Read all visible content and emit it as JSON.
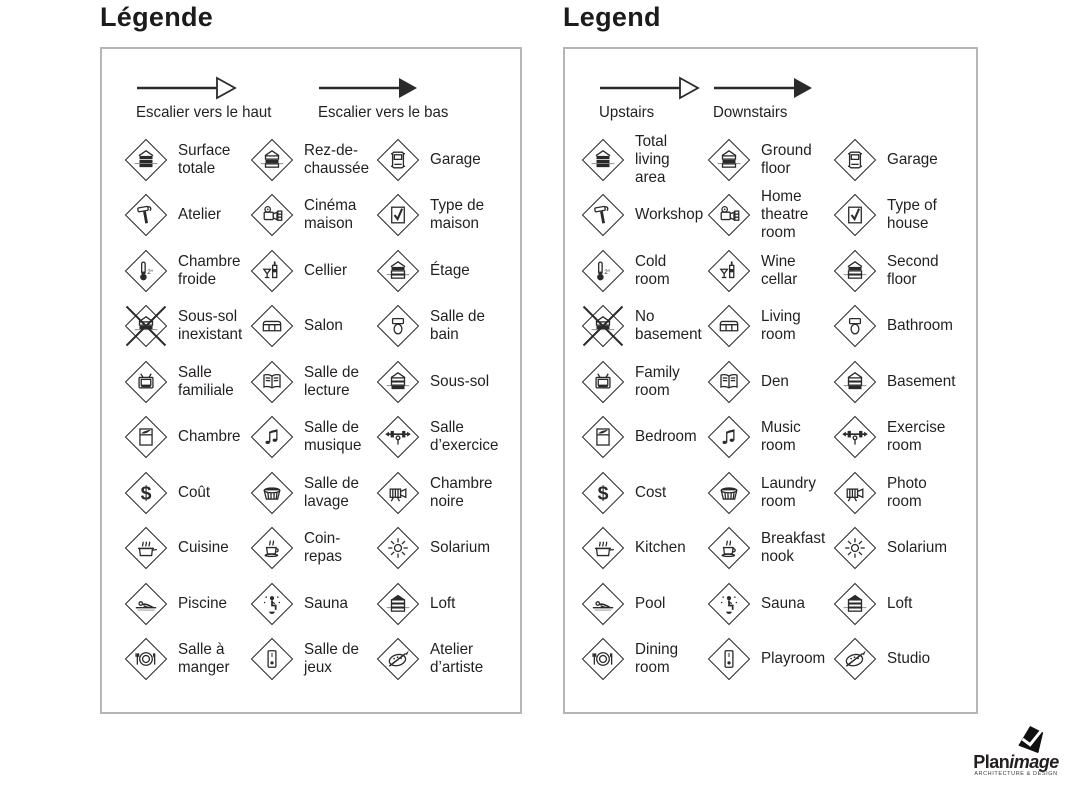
{
  "colors": {
    "ink": "#231f20",
    "panel_border": "#b3b5b7"
  },
  "panels": [
    {
      "id": "legend-fr",
      "title": "Légende",
      "arrows": [
        {
          "icon": "arrow-open-icon",
          "label": "Escalier vers le haut"
        },
        {
          "icon": "arrow-filled-icon",
          "label": "Escalier vers le bas"
        }
      ],
      "items": [
        {
          "icon": "total-area-icon",
          "label": "Surface\ntotale"
        },
        {
          "icon": "ground-floor-icon",
          "label": "Rez-de-\nchaussée"
        },
        {
          "icon": "garage-icon",
          "label": "Garage"
        },
        {
          "icon": "hammer-icon",
          "label": "Atelier"
        },
        {
          "icon": "projector-icon",
          "label": "Cinéma\nmaison"
        },
        {
          "icon": "house-check-icon",
          "label": "Type de\nmaison"
        },
        {
          "icon": "thermometer-icon",
          "label": "Chambre\nfroide"
        },
        {
          "icon": "wine-icon",
          "label": "Cellier"
        },
        {
          "icon": "second-floor-icon",
          "label": "Étage"
        },
        {
          "icon": "no-basement-icon",
          "label": "Sous-sol\ninexistant"
        },
        {
          "icon": "sofa-icon",
          "label": "Salon"
        },
        {
          "icon": "toilet-icon",
          "label": "Salle de\nbain"
        },
        {
          "icon": "tv-icon",
          "label": "Salle\nfamiliale"
        },
        {
          "icon": "book-icon",
          "label": "Salle de\nlecture"
        },
        {
          "icon": "basement-icon",
          "label": "Sous-sol"
        },
        {
          "icon": "bed-icon",
          "label": "Chambre"
        },
        {
          "icon": "music-icon",
          "label": "Salle de\nmusique"
        },
        {
          "icon": "weights-icon",
          "label": "Salle\nd’exercice"
        },
        {
          "icon": "dollar-icon",
          "label": "Coût"
        },
        {
          "icon": "laundry-icon",
          "label": "Salle de\nlavage"
        },
        {
          "icon": "camera-icon",
          "label": "Chambre\nnoire"
        },
        {
          "icon": "pot-icon",
          "label": "Cuisine"
        },
        {
          "icon": "cup-icon",
          "label": "Coin-\nrepas"
        },
        {
          "icon": "sun-icon",
          "label": "Solarium"
        },
        {
          "icon": "swimmer-icon",
          "label": "Piscine"
        },
        {
          "icon": "sauna-icon",
          "label": "Sauna"
        },
        {
          "icon": "loft-icon",
          "label": "Loft"
        },
        {
          "icon": "plate-icon",
          "label": "Salle à\nmanger"
        },
        {
          "icon": "playroom-icon",
          "label": "Salle de\njeux"
        },
        {
          "icon": "palette-icon",
          "label": "Atelier\nd’artiste"
        }
      ]
    },
    {
      "id": "legend-en",
      "title": "Legend",
      "arrows": [
        {
          "icon": "arrow-open-icon",
          "label": "Upstairs"
        },
        {
          "icon": "arrow-filled-icon",
          "label": "Downstairs"
        }
      ],
      "items": [
        {
          "icon": "total-area-icon",
          "label": "Total\nliving\narea"
        },
        {
          "icon": "ground-floor-icon",
          "label": "Ground\nfloor"
        },
        {
          "icon": "garage-icon",
          "label": "Garage"
        },
        {
          "icon": "hammer-icon",
          "label": "Workshop"
        },
        {
          "icon": "projector-icon",
          "label": "Home\ntheatre\nroom"
        },
        {
          "icon": "house-check-icon",
          "label": "Type of\nhouse"
        },
        {
          "icon": "thermometer-icon",
          "label": "Cold\nroom"
        },
        {
          "icon": "wine-icon",
          "label": "Wine\ncellar"
        },
        {
          "icon": "second-floor-icon",
          "label": "Second\nfloor"
        },
        {
          "icon": "no-basement-icon",
          "label": "No\nbasement"
        },
        {
          "icon": "sofa-icon",
          "label": "Living\nroom"
        },
        {
          "icon": "toilet-icon",
          "label": "Bathroom"
        },
        {
          "icon": "tv-icon",
          "label": "Family\nroom"
        },
        {
          "icon": "book-icon",
          "label": "Den"
        },
        {
          "icon": "basement-icon",
          "label": "Basement"
        },
        {
          "icon": "bed-icon",
          "label": "Bedroom"
        },
        {
          "icon": "music-icon",
          "label": "Music\nroom"
        },
        {
          "icon": "weights-icon",
          "label": "Exercise\nroom"
        },
        {
          "icon": "dollar-icon",
          "label": "Cost"
        },
        {
          "icon": "laundry-icon",
          "label": "Laundry\nroom"
        },
        {
          "icon": "camera-icon",
          "label": "Photo\nroom"
        },
        {
          "icon": "pot-icon",
          "label": "Kitchen"
        },
        {
          "icon": "cup-icon",
          "label": "Breakfast\nnook"
        },
        {
          "icon": "sun-icon",
          "label": "Solarium"
        },
        {
          "icon": "swimmer-icon",
          "label": "Pool"
        },
        {
          "icon": "sauna-icon",
          "label": "Sauna"
        },
        {
          "icon": "loft-icon",
          "label": "Loft"
        },
        {
          "icon": "plate-icon",
          "label": "Dining\nroom"
        },
        {
          "icon": "playroom-icon",
          "label": "Playroom"
        },
        {
          "icon": "palette-icon",
          "label": "Studio"
        }
      ]
    }
  ],
  "logo": {
    "brand_bold": "Plan",
    "brand_italic": "image",
    "tagline": "ARCHITECTURE & DESIGN"
  }
}
